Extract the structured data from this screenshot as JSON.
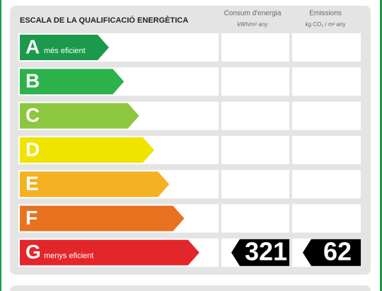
{
  "header": {
    "title": "ESCALA DE LA QUALIFICACIÓ ENERGÈTICA",
    "consumption": {
      "title": "Consum d'energia",
      "unit": "kWh/m² any"
    },
    "emissions": {
      "title": "Emissions",
      "unit": "kg CO₂ / m² any"
    }
  },
  "rows": [
    {
      "letter": "A",
      "label": "més eficient",
      "color": "#1a9a4a"
    },
    {
      "letter": "B",
      "color": "#2db24b"
    },
    {
      "letter": "C",
      "color": "#8dc63f"
    },
    {
      "letter": "D",
      "color": "#f1e300"
    },
    {
      "letter": "E",
      "color": "#f4b121"
    },
    {
      "letter": "F",
      "color": "#e8721f"
    },
    {
      "letter": "G",
      "label": "menys eficient",
      "color": "#e3262b",
      "consumption": 321,
      "emissions": 62
    }
  ]
}
